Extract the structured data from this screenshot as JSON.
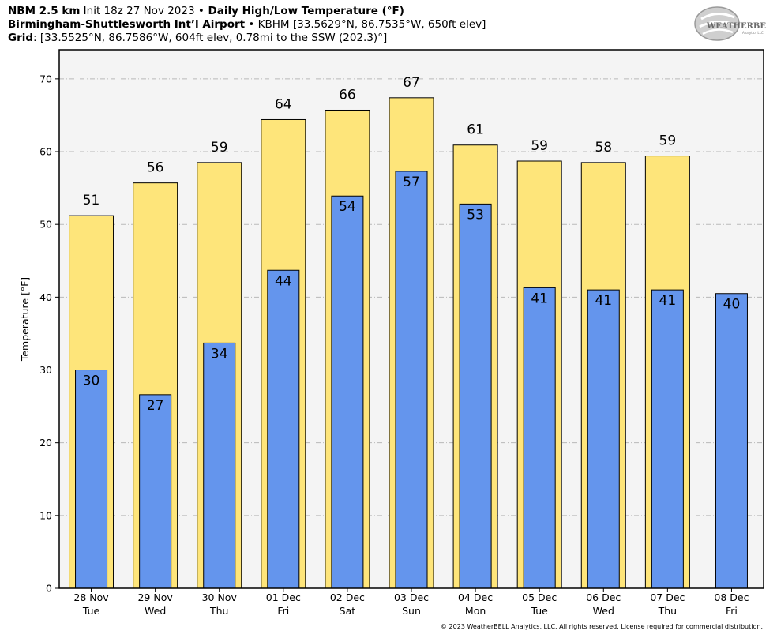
{
  "header": {
    "line1_bold_a": "NBM 2.5 km",
    "line1_normal": " Init 18z 27 Nov 2023 ",
    "bullet": "•",
    "line1_bold_b": " Daily High/Low Temperature (°F)",
    "line2_bold": "Birmingham-Shuttlesworth Int’l Airport",
    "line2_normal": " KBHM [33.5629°N, 86.7535°W, 650ft elev]",
    "line3_bold": "Grid",
    "line3_normal": ": [33.5525°N, 86.7586°W, 604ft elev, 0.78mi to the SSW (202.3)°]"
  },
  "logo": {
    "text": "WEATHERBELL",
    "sub": "Analytics LLC"
  },
  "copyright": "© 2023 WeatherBELL Analytics, LLC. All rights reserved. License required for commercial distribution.",
  "chart_data": {
    "type": "bar",
    "title": "Daily High/Low Temperature (°F)",
    "ylabel": "Temperature [°F]",
    "xlabel": "",
    "ylim": [
      0,
      74
    ],
    "yticks": [
      0,
      10,
      20,
      30,
      40,
      50,
      60,
      70
    ],
    "grid": true,
    "categories": [
      {
        "date": "28 Nov",
        "day": "Tue"
      },
      {
        "date": "29 Nov",
        "day": "Wed"
      },
      {
        "date": "30 Nov",
        "day": "Thu"
      },
      {
        "date": "01 Dec",
        "day": "Fri"
      },
      {
        "date": "02 Dec",
        "day": "Sat"
      },
      {
        "date": "03 Dec",
        "day": "Sun"
      },
      {
        "date": "04 Dec",
        "day": "Mon"
      },
      {
        "date": "05 Dec",
        "day": "Tue"
      },
      {
        "date": "06 Dec",
        "day": "Wed"
      },
      {
        "date": "07 Dec",
        "day": "Thu"
      },
      {
        "date": "08 Dec",
        "day": "Fri"
      }
    ],
    "series": [
      {
        "values": [
          51.2,
          55.7,
          58.5,
          64.4,
          65.7,
          67.4,
          60.9,
          58.7,
          58.5,
          59.4,
          null
        ],
        "labels": [
          "51",
          "56",
          "59",
          "64",
          "66",
          "67",
          "61",
          "59",
          "58",
          "59",
          ""
        ],
        "color": "#fee57a"
      },
      {
        "values": [
          30.0,
          26.6,
          33.7,
          43.7,
          53.9,
          57.3,
          52.8,
          41.3,
          41.0,
          41.0,
          40.5
        ],
        "labels": [
          "30",
          "27",
          "34",
          "44",
          "54",
          "57",
          "53",
          "41",
          "41",
          "41",
          "40"
        ],
        "color": "#6495ed"
      }
    ]
  },
  "colors": {
    "plot_bg": "#f4f4f4",
    "grid": "#b9b9b9"
  }
}
